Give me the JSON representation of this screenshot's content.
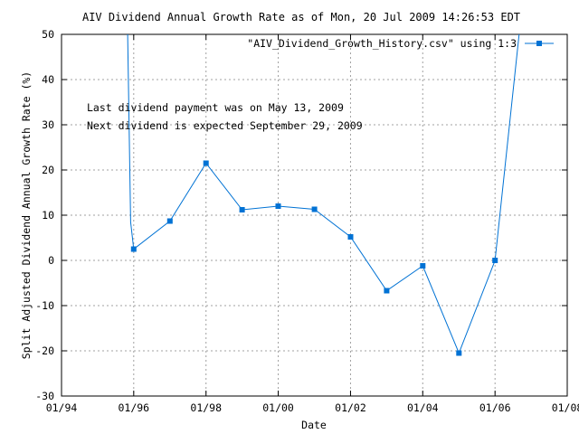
{
  "chart_data": {
    "type": "line",
    "title": "AIV Dividend Annual Growth Rate as of Mon, 20 Jul 2009 14:26:53 EDT",
    "xlabel": "Date",
    "ylabel": "Split Adjusted Dividend Annual Growth Rate (%)",
    "xlim": [
      "1994-01-01",
      "2008-01-01"
    ],
    "ylim": [
      -30,
      50
    ],
    "x_ticks": [
      "01/94",
      "01/96",
      "01/98",
      "01/00",
      "01/02",
      "01/04",
      "01/06",
      "01/08"
    ],
    "x_tick_dates": [
      "1994-01-01",
      "1996-01-01",
      "1998-01-01",
      "2000-01-01",
      "2002-01-01",
      "2004-01-01",
      "2006-01-01",
      "2008-01-01"
    ],
    "y_ticks": [
      -30,
      -20,
      -10,
      0,
      10,
      20,
      30,
      40,
      50
    ],
    "grid": true,
    "legend_position": "top-right",
    "annotations": [
      "Last dividend payment was on May 13, 2009",
      "Next dividend is expected September 29, 2009"
    ],
    "series": [
      {
        "name": "\"AIV_Dividend_Growth_History.csv\" using 1:3",
        "color": "#0072d4",
        "x": [
          "1995-11-01",
          "1995-12-01",
          "1996-01-01",
          "1997-01-01",
          "1998-01-01",
          "1999-01-01",
          "2000-01-01",
          "2001-01-01",
          "2002-01-01",
          "2003-01-01",
          "2004-01-01",
          "2005-01-01",
          "2006-01-01",
          "2006-09-01"
        ],
        "y": [
          50,
          8.5,
          2.5,
          8.7,
          21.5,
          11.2,
          12.0,
          11.3,
          5.2,
          -6.7,
          -1.2,
          -20.5,
          0.0,
          50
        ],
        "markers": [
          false,
          false,
          true,
          true,
          true,
          true,
          true,
          true,
          true,
          true,
          true,
          true,
          true,
          false
        ]
      }
    ]
  }
}
